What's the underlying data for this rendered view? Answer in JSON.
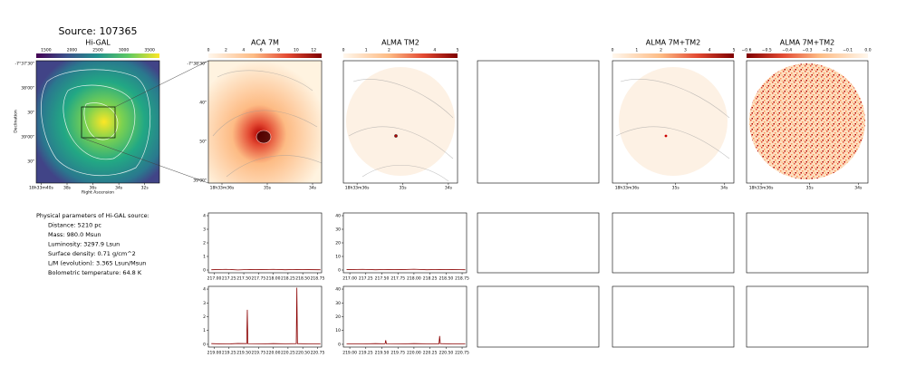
{
  "title": "Source: 107365",
  "images": [
    {
      "title": "Hi-GAL",
      "colorbar_ticks": [
        "1500",
        "2000",
        "2500",
        "3000",
        "3500"
      ],
      "yticks": [
        "-7°37'30\"",
        "38'00\"",
        "30\"",
        "39'00\"",
        "30\""
      ],
      "xticks": [
        "18h33m40s",
        "38s",
        "36s",
        "34s",
        "32s"
      ],
      "xlabel": "Right Ascension",
      "ylabel": "Declination"
    },
    {
      "title": "ACA 7M",
      "colorbar_ticks": [
        "0",
        "2",
        "4",
        "6",
        "8",
        "10",
        "12"
      ],
      "yticks": [
        "-7°38'30\"",
        "40\"",
        "50\"",
        "39'00\""
      ],
      "xticks": [
        "18h33m36s",
        "35s",
        "34s"
      ]
    },
    {
      "title": "ALMA TM2",
      "colorbar_ticks": [
        "0",
        "1",
        "2",
        "3",
        "4",
        "5"
      ],
      "xticks": [
        "18h33m36s",
        "35s",
        "34s"
      ]
    },
    {
      "title": "ALMA 7M+TM2",
      "colorbar_ticks": [
        "0",
        "1",
        "2",
        "3",
        "4",
        "5"
      ],
      "xticks": [
        "18h33m36s",
        "35s",
        "34s"
      ]
    },
    {
      "title": "ALMA 7M+TM2",
      "colorbar_ticks": [
        "−0.6",
        "−0.5",
        "−0.4",
        "−0.3",
        "−0.2",
        "−0.1",
        "0.0"
      ],
      "xticks": [
        "18h33m36s",
        "35s",
        "34s"
      ]
    }
  ],
  "parameters": {
    "heading": "Physical parameters of Hi-GAL source:",
    "items": [
      "Distance: 5210 pc",
      "Mass: 980.0 Msun",
      "Luminosity: 3297.9 Lsun",
      "Surface density: 0.71 g/cm^2",
      "L/M (evolution): 3.365 Lsun/Msun",
      "Bolometric temperature: 64.8 K"
    ]
  },
  "chart_data": [
    {
      "type": "line",
      "color": "#8b0000",
      "x": [
        216.95,
        217.2,
        217.4,
        217.6,
        217.8,
        218.0,
        218.2,
        218.4,
        218.6,
        218.8
      ],
      "values": [
        0.02,
        0.05,
        0.01,
        0.04,
        0.03,
        0.05,
        0.02,
        0.04,
        0.03,
        0.02
      ],
      "xlim": [
        216.9,
        218.82
      ],
      "ylim": [
        -0.2,
        4.2
      ],
      "xticks": [
        {
          "value": 217.0,
          "label": "217.00"
        },
        {
          "value": 217.25,
          "label": "217.25"
        },
        {
          "value": 217.5,
          "label": "217.50"
        },
        {
          "value": 217.75,
          "label": "217.75"
        },
        {
          "value": 218.0,
          "label": "218.00"
        },
        {
          "value": 218.25,
          "label": "218.25"
        },
        {
          "value": 218.5,
          "label": "218.50"
        },
        {
          "value": 218.75,
          "label": "218.75"
        }
      ],
      "yticks": [
        0,
        1,
        2,
        3,
        4
      ]
    },
    {
      "type": "line",
      "color": "#8b0000",
      "x": [
        216.95,
        217.2,
        217.4,
        217.6,
        217.8,
        218.0,
        218.2,
        218.4,
        218.6,
        218.8
      ],
      "values": [
        0.3,
        0.5,
        0.2,
        0.4,
        0.3,
        0.6,
        0.2,
        0.4,
        0.3,
        0.2
      ],
      "xlim": [
        216.9,
        218.82
      ],
      "ylim": [
        -2,
        42
      ],
      "xticks": [
        {
          "value": 217.0,
          "label": "217.00"
        },
        {
          "value": 217.25,
          "label": "217.25"
        },
        {
          "value": 217.5,
          "label": "217.50"
        },
        {
          "value": 217.75,
          "label": "217.75"
        },
        {
          "value": 218.0,
          "label": "218.00"
        },
        {
          "value": 218.25,
          "label": "218.25"
        },
        {
          "value": 218.5,
          "label": "218.50"
        },
        {
          "value": 218.75,
          "label": "218.75"
        }
      ],
      "yticks": [
        0,
        10,
        20,
        30,
        40
      ]
    },
    {
      "type": "line",
      "color": "#8b0000",
      "x": [
        218.95,
        219.2,
        219.4,
        219.55,
        219.56,
        219.57,
        219.8,
        220.0,
        220.2,
        220.39,
        220.4,
        220.41,
        220.6,
        220.8
      ],
      "values": [
        0.05,
        0.02,
        0.06,
        0.05,
        2.5,
        0.04,
        0.03,
        0.05,
        0.04,
        0.05,
        4.1,
        0.05,
        0.03,
        0.04
      ],
      "xlim": [
        218.9,
        220.82
      ],
      "ylim": [
        -0.2,
        4.2
      ],
      "xticks": [
        {
          "value": 219.0,
          "label": "219.00"
        },
        {
          "value": 219.25,
          "label": "219.25"
        },
        {
          "value": 219.5,
          "label": "219.50"
        },
        {
          "value": 219.75,
          "label": "219.75"
        },
        {
          "value": 220.0,
          "label": "220.00"
        },
        {
          "value": 220.25,
          "label": "220.25"
        },
        {
          "value": 220.5,
          "label": "220.50"
        },
        {
          "value": 220.75,
          "label": "220.75"
        }
      ],
      "yticks": [
        0,
        1,
        2,
        3,
        4
      ]
    },
    {
      "type": "line",
      "color": "#8b0000",
      "x": [
        218.95,
        219.2,
        219.4,
        219.55,
        219.56,
        219.57,
        219.8,
        220.0,
        220.2,
        220.39,
        220.4,
        220.41,
        220.6,
        220.8
      ],
      "values": [
        0.4,
        0.3,
        0.5,
        0.4,
        3,
        0.4,
        0.3,
        0.5,
        0.4,
        0.4,
        6,
        0.5,
        0.3,
        0.4
      ],
      "xlim": [
        218.9,
        220.82
      ],
      "ylim": [
        -2,
        42
      ],
      "xticks": [
        {
          "value": 219.0,
          "label": "219.00"
        },
        {
          "value": 219.25,
          "label": "219.25"
        },
        {
          "value": 219.5,
          "label": "219.50"
        },
        {
          "value": 219.75,
          "label": "219.75"
        },
        {
          "value": 220.0,
          "label": "220.00"
        },
        {
          "value": 220.25,
          "label": "220.25"
        },
        {
          "value": 220.5,
          "label": "220.50"
        },
        {
          "value": 220.75,
          "label": "220.75"
        }
      ],
      "yticks": [
        0,
        10,
        20,
        30,
        40
      ]
    }
  ]
}
